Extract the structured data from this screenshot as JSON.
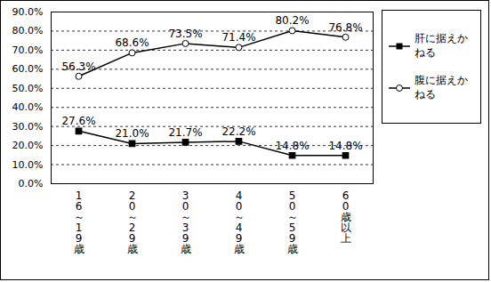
{
  "chart_data": {
    "type": "line",
    "categories": [
      "16～19歳",
      "20～29歳",
      "30～39歳",
      "40～49歳",
      "50～59歳",
      "60歳以上"
    ],
    "series": [
      {
        "name": "肝に据えかねる",
        "color": "#000000",
        "marker": "square",
        "values": [
          27.6,
          21.0,
          21.7,
          22.2,
          14.8,
          14.8
        ],
        "value_labels": [
          "27.6%",
          "21.0%",
          "21.7%",
          "22.2%",
          "14.8%",
          "14.8%"
        ]
      },
      {
        "name": "腹に据えかねる",
        "color": "#000000",
        "marker": "open_circle",
        "values": [
          56.3,
          68.6,
          73.5,
          71.4,
          80.2,
          76.8
        ],
        "value_labels": [
          "56.3%",
          "68.6%",
          "73.5%",
          "71.4%",
          "80.2%",
          "76.8%"
        ]
      }
    ],
    "ylim": [
      0,
      90
    ],
    "yticks": [
      {
        "value": 0,
        "label": "0.0%"
      },
      {
        "value": 10,
        "label": "10.0%"
      },
      {
        "value": 20,
        "label": "20.0%"
      },
      {
        "value": 30,
        "label": "30.0%"
      },
      {
        "value": 40,
        "label": "40.0%"
      },
      {
        "value": 50,
        "label": "50.0%"
      },
      {
        "value": 60,
        "label": "60.0%"
      },
      {
        "value": 70,
        "label": "70.0%"
      },
      {
        "value": 80,
        "label": "80.0%"
      },
      {
        "value": 90,
        "label": "90.0%"
      }
    ],
    "grid": true,
    "data_labels": true,
    "legend": "right"
  }
}
